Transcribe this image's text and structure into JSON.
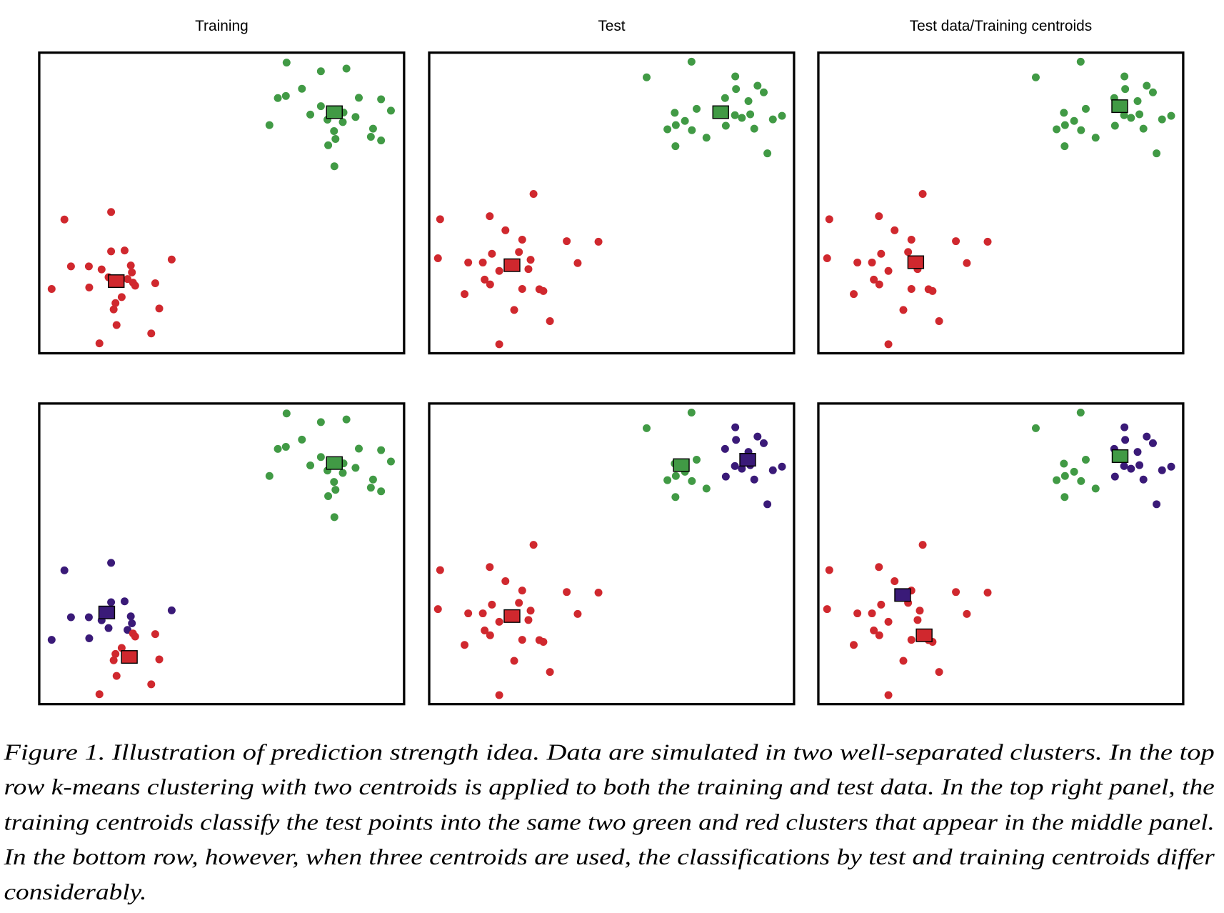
{
  "colors": {
    "red": "#d0282e",
    "green": "#419a45",
    "purple": "#3a1a78",
    "frame": "#000000"
  },
  "caption": {
    "lines": [
      "Figure 1.  Illustration of prediction strength idea. Data are simulated in two well-separated clusters. In the top",
      "row k-means clustering with two centroids is applied to both the training and test data. In the top right panel, the",
      "training centroids classify the test points into the same two green and red clusters that appear in the middle panel.",
      "In the bottom row, however, when three centroids are used, the classifications by test and training centroids differ",
      "considerably."
    ]
  },
  "chart_data": {
    "type": "scatter",
    "grid": false,
    "axes_shown": false,
    "xlim": [
      0,
      10
    ],
    "ylim": [
      0,
      10
    ],
    "training_points": [
      [
        6.78,
        9.67
      ],
      [
        7.72,
        9.38
      ],
      [
        8.42,
        9.47
      ],
      [
        7.2,
        8.8
      ],
      [
        6.54,
        8.49
      ],
      [
        6.76,
        8.56
      ],
      [
        8.76,
        8.5
      ],
      [
        9.37,
        8.45
      ],
      [
        7.72,
        8.22
      ],
      [
        7.43,
        7.94
      ],
      [
        8.34,
        8.01
      ],
      [
        7.9,
        7.77
      ],
      [
        8.32,
        7.69
      ],
      [
        8.67,
        7.86
      ],
      [
        9.64,
        8.07
      ],
      [
        6.31,
        7.59
      ],
      [
        8.08,
        7.39
      ],
      [
        9.15,
        7.47
      ],
      [
        8.12,
        7.13
      ],
      [
        9.09,
        7.2
      ],
      [
        9.37,
        7.08
      ],
      [
        7.92,
        6.92
      ],
      [
        8.09,
        6.22
      ],
      [
        1.97,
        4.7
      ],
      [
        0.69,
        4.45
      ],
      [
        1.97,
        3.39
      ],
      [
        2.34,
        3.42
      ],
      [
        3.63,
        3.12
      ],
      [
        0.87,
        2.89
      ],
      [
        1.36,
        2.89
      ],
      [
        1.71,
        2.79
      ],
      [
        2.51,
        2.92
      ],
      [
        2.54,
        2.69
      ],
      [
        1.9,
        2.53
      ],
      [
        2.42,
        2.47
      ],
      [
        2.57,
        2.35
      ],
      [
        2.63,
        2.25
      ],
      [
        3.18,
        2.33
      ],
      [
        0.34,
        2.14
      ],
      [
        1.37,
        2.19
      ],
      [
        2.26,
        1.87
      ],
      [
        2.09,
        1.67
      ],
      [
        2.04,
        1.46
      ],
      [
        3.29,
        1.49
      ],
      [
        2.12,
        0.94
      ],
      [
        3.07,
        0.66
      ],
      [
        1.65,
        0.33
      ]
    ],
    "test_points": [
      [
        7.19,
        9.7
      ],
      [
        5.96,
        9.18
      ],
      [
        8.39,
        9.21
      ],
      [
        8.41,
        8.79
      ],
      [
        9.0,
        8.9
      ],
      [
        9.17,
        8.68
      ],
      [
        8.11,
        8.49
      ],
      [
        8.75,
        8.39
      ],
      [
        7.33,
        8.13
      ],
      [
        6.73,
        8.0
      ],
      [
        8.38,
        7.92
      ],
      [
        8.57,
        7.83
      ],
      [
        8.8,
        7.95
      ],
      [
        9.42,
        7.78
      ],
      [
        9.67,
        7.9
      ],
      [
        7.01,
        7.73
      ],
      [
        6.76,
        7.59
      ],
      [
        6.53,
        7.45
      ],
      [
        7.2,
        7.42
      ],
      [
        8.13,
        7.57
      ],
      [
        8.91,
        7.47
      ],
      [
        7.6,
        7.17
      ],
      [
        6.75,
        6.89
      ],
      [
        9.27,
        6.65
      ],
      [
        2.86,
        5.3
      ],
      [
        0.3,
        4.46
      ],
      [
        1.66,
        4.56
      ],
      [
        2.09,
        4.09
      ],
      [
        2.55,
        3.78
      ],
      [
        3.77,
        3.73
      ],
      [
        4.64,
        3.71
      ],
      [
        0.24,
        3.16
      ],
      [
        1.72,
        3.31
      ],
      [
        2.46,
        3.37
      ],
      [
        1.07,
        3.02
      ],
      [
        1.47,
        3.02
      ],
      [
        2.78,
        3.11
      ],
      [
        2.72,
        2.8
      ],
      [
        4.07,
        3.0
      ],
      [
        1.92,
        2.74
      ],
      [
        1.52,
        2.45
      ],
      [
        1.67,
        2.29
      ],
      [
        0.97,
        1.97
      ],
      [
        2.55,
        2.14
      ],
      [
        3.02,
        2.13
      ],
      [
        3.13,
        2.07
      ],
      [
        2.33,
        1.44
      ],
      [
        3.31,
        1.07
      ],
      [
        1.92,
        0.3
      ]
    ],
    "label_sets": {
      "training_k2": [
        "green",
        "green",
        "green",
        "green",
        "green",
        "green",
        "green",
        "green",
        "green",
        "green",
        "green",
        "green",
        "green",
        "green",
        "green",
        "green",
        "green",
        "green",
        "green",
        "green",
        "green",
        "green",
        "green",
        "red",
        "red",
        "red",
        "red",
        "red",
        "red",
        "red",
        "red",
        "red",
        "red",
        "red",
        "red",
        "red",
        "red",
        "red",
        "red",
        "red",
        "red",
        "red",
        "red",
        "red",
        "red",
        "red",
        "red"
      ],
      "training_k3": [
        "green",
        "green",
        "green",
        "green",
        "green",
        "green",
        "green",
        "green",
        "green",
        "green",
        "green",
        "green",
        "green",
        "green",
        "green",
        "green",
        "green",
        "green",
        "green",
        "green",
        "green",
        "green",
        "green",
        "purple",
        "purple",
        "purple",
        "purple",
        "purple",
        "purple",
        "purple",
        "purple",
        "purple",
        "purple",
        "purple",
        "purple",
        "red",
        "red",
        "red",
        "purple",
        "purple",
        "red",
        "red",
        "red",
        "red",
        "red",
        "red",
        "red"
      ],
      "test_k2": [
        "green",
        "green",
        "green",
        "green",
        "green",
        "green",
        "green",
        "green",
        "green",
        "green",
        "green",
        "green",
        "green",
        "green",
        "green",
        "green",
        "green",
        "green",
        "green",
        "green",
        "green",
        "green",
        "green",
        "green",
        "red",
        "red",
        "red",
        "red",
        "red",
        "red",
        "red",
        "red",
        "red",
        "red",
        "red",
        "red",
        "red",
        "red",
        "red",
        "red",
        "red",
        "red",
        "red",
        "red",
        "red",
        "red",
        "red",
        "red",
        "red"
      ],
      "test_k3": [
        "green",
        "green",
        "purple",
        "purple",
        "purple",
        "purple",
        "purple",
        "purple",
        "green",
        "green",
        "purple",
        "purple",
        "purple",
        "purple",
        "purple",
        "green",
        "green",
        "green",
        "green",
        "purple",
        "purple",
        "green",
        "green",
        "purple",
        "red",
        "red",
        "red",
        "red",
        "red",
        "red",
        "red",
        "red",
        "red",
        "red",
        "red",
        "red",
        "red",
        "red",
        "red",
        "red",
        "red",
        "red",
        "red",
        "red",
        "red",
        "red",
        "red",
        "red",
        "red"
      ]
    },
    "panels": [
      {
        "title": "Training",
        "row": 0,
        "col": 0,
        "points": "training_points",
        "labels": "training_k2",
        "centroids": [
          {
            "color": "green",
            "x": 8.09,
            "y": 8.02
          },
          {
            "color": "red",
            "x": 2.11,
            "y": 2.4
          }
        ]
      },
      {
        "title": "Test",
        "row": 0,
        "col": 1,
        "points": "test_points",
        "labels": "test_k2",
        "centroids": [
          {
            "color": "green",
            "x": 7.99,
            "y": 8.02
          },
          {
            "color": "red",
            "x": 2.27,
            "y": 2.93
          }
        ]
      },
      {
        "title": "Test data/Training centroids",
        "row": 0,
        "col": 2,
        "points": "test_points",
        "labels": "test_k2",
        "centroids": [
          {
            "color": "green",
            "x": 8.26,
            "y": 8.22
          },
          {
            "color": "red",
            "x": 2.67,
            "y": 3.03
          }
        ]
      },
      {
        "title": "",
        "row": 1,
        "col": 0,
        "points": "training_points",
        "labels": "training_k3",
        "centroids": [
          {
            "color": "green",
            "x": 8.09,
            "y": 8.02
          },
          {
            "color": "purple",
            "x": 1.85,
            "y": 3.05
          },
          {
            "color": "red",
            "x": 2.47,
            "y": 1.57
          }
        ]
      },
      {
        "title": "",
        "row": 1,
        "col": 1,
        "points": "test_points",
        "labels": "test_k3",
        "centroids": [
          {
            "color": "green",
            "x": 6.91,
            "y": 7.95
          },
          {
            "color": "purple",
            "x": 8.73,
            "y": 8.13
          },
          {
            "color": "red",
            "x": 2.27,
            "y": 2.93
          }
        ]
      },
      {
        "title": "",
        "row": 1,
        "col": 2,
        "points": "test_points",
        "labels": "test_k3",
        "centroids": [
          {
            "color": "green",
            "x": 8.27,
            "y": 8.25
          },
          {
            "color": "purple",
            "x": 2.31,
            "y": 3.63
          },
          {
            "color": "red",
            "x": 2.9,
            "y": 2.29
          }
        ]
      }
    ]
  }
}
